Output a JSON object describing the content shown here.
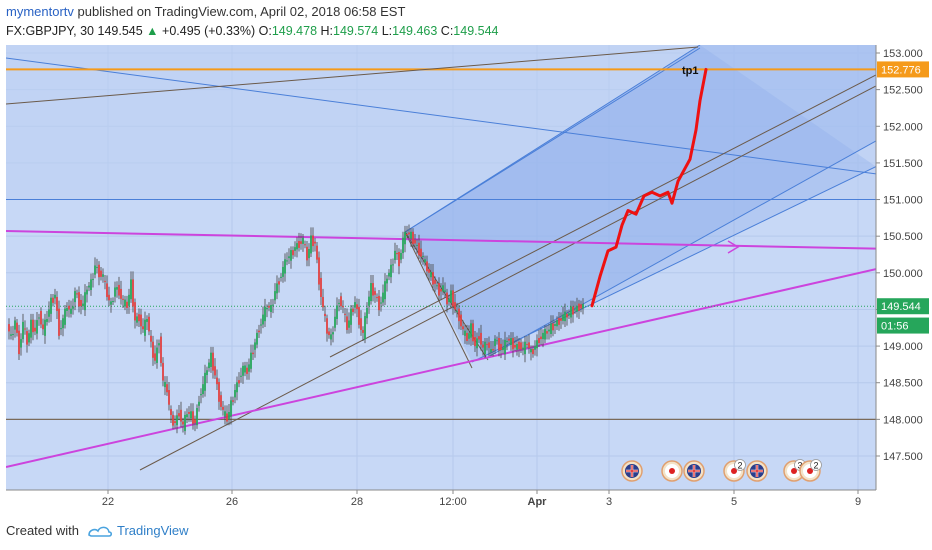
{
  "header": {
    "author": "mymentortv",
    "published": "published on TradingView.com, April 02, 2018 06:58 EST",
    "symbol": "FX:GBPJPY, 30",
    "last": "149.545",
    "change": "+0.495 (+0.33%)",
    "o_label": "O:",
    "o_value": "149.478",
    "h_label": "H:",
    "h_value": "149.574",
    "l_label": "L:",
    "l_value": "149.463",
    "c_label": "C:",
    "c_value": "149.544"
  },
  "footer": {
    "created": "Created with",
    "brand": "TradingView"
  },
  "chart_data": {
    "type": "candlestick",
    "symbol": "FX:GBPJPY",
    "interval": "30",
    "y_ticks": [
      "153.000",
      "152.500",
      "152.000",
      "151.500",
      "151.000",
      "150.500",
      "150.000",
      "149.500",
      "149.000",
      "148.500",
      "148.000",
      "147.500"
    ],
    "x_ticks": [
      "22",
      "26",
      "28",
      "12:00",
      "Apr",
      "3",
      "5",
      "9"
    ],
    "ylim": [
      147.05,
      153.1
    ],
    "price_tags": [
      {
        "label": "152.776",
        "value": 152.776,
        "color": "#f59a1a"
      },
      {
        "label": "149.544",
        "value": 149.544,
        "color": "#26a65b"
      },
      {
        "label": "01:56",
        "value": 149.28,
        "color": "#26a65b"
      }
    ],
    "annotation": "tp1",
    "horizontal_levels": [
      152.776,
      151.0,
      148.0
    ],
    "close_path": [
      [
        0,
        149.3
      ],
      [
        4,
        149.1
      ],
      [
        8,
        149.35
      ],
      [
        12,
        148.95
      ],
      [
        16,
        149.3
      ],
      [
        20,
        149.05
      ],
      [
        24,
        149.3
      ],
      [
        28,
        149.2
      ],
      [
        32,
        149.45
      ],
      [
        36,
        149.2
      ],
      [
        40,
        149.4
      ],
      [
        44,
        149.6
      ],
      [
        48,
        149.7
      ],
      [
        52,
        149.2
      ],
      [
        56,
        149.35
      ],
      [
        60,
        149.55
      ],
      [
        64,
        149.45
      ],
      [
        68,
        149.75
      ],
      [
        72,
        149.6
      ],
      [
        76,
        149.55
      ],
      [
        80,
        149.8
      ],
      [
        84,
        149.85
      ],
      [
        88,
        150.1
      ],
      [
        92,
        150.0
      ],
      [
        96,
        149.95
      ],
      [
        100,
        149.7
      ],
      [
        104,
        149.55
      ],
      [
        108,
        149.8
      ],
      [
        112,
        149.75
      ],
      [
        116,
        149.6
      ],
      [
        120,
        149.55
      ],
      [
        124,
        149.85
      ],
      [
        128,
        149.35
      ],
      [
        132,
        149.4
      ],
      [
        136,
        149.2
      ],
      [
        140,
        149.4
      ],
      [
        144,
        149.0
      ],
      [
        148,
        148.8
      ],
      [
        152,
        149.1
      ],
      [
        156,
        148.5
      ],
      [
        160,
        148.4
      ],
      [
        164,
        148.0
      ],
      [
        168,
        147.95
      ],
      [
        172,
        148.1
      ],
      [
        176,
        147.9
      ],
      [
        180,
        148.1
      ],
      [
        184,
        148.05
      ],
      [
        188,
        147.95
      ],
      [
        192,
        148.3
      ],
      [
        196,
        148.45
      ],
      [
        200,
        148.7
      ],
      [
        204,
        148.85
      ],
      [
        208,
        148.6
      ],
      [
        212,
        148.3
      ],
      [
        216,
        148.1
      ],
      [
        220,
        148.0
      ],
      [
        224,
        148.2
      ],
      [
        228,
        148.4
      ],
      [
        232,
        148.55
      ],
      [
        236,
        148.7
      ],
      [
        240,
        148.65
      ],
      [
        244,
        148.85
      ],
      [
        248,
        149.05
      ],
      [
        252,
        149.25
      ],
      [
        256,
        149.4
      ],
      [
        260,
        149.55
      ],
      [
        264,
        149.5
      ],
      [
        268,
        149.75
      ],
      [
        272,
        149.9
      ],
      [
        276,
        150.05
      ],
      [
        280,
        150.2
      ],
      [
        284,
        150.25
      ],
      [
        288,
        150.35
      ],
      [
        292,
        150.4
      ],
      [
        296,
        150.45
      ],
      [
        300,
        150.2
      ],
      [
        304,
        150.45
      ],
      [
        308,
        150.4
      ],
      [
        312,
        149.9
      ],
      [
        316,
        149.5
      ],
      [
        320,
        149.2
      ],
      [
        324,
        149.1
      ],
      [
        328,
        149.4
      ],
      [
        332,
        149.65
      ],
      [
        336,
        149.5
      ],
      [
        340,
        149.25
      ],
      [
        344,
        149.45
      ],
      [
        348,
        149.6
      ],
      [
        352,
        149.35
      ],
      [
        356,
        149.15
      ],
      [
        360,
        149.55
      ],
      [
        364,
        149.8
      ],
      [
        368,
        149.7
      ],
      [
        372,
        149.55
      ],
      [
        376,
        149.7
      ],
      [
        380,
        149.95
      ],
      [
        384,
        150.05
      ],
      [
        388,
        150.3
      ],
      [
        392,
        150.15
      ],
      [
        396,
        150.45
      ],
      [
        400,
        150.55
      ],
      [
        404,
        150.5
      ],
      [
        408,
        150.4
      ],
      [
        412,
        150.3
      ],
      [
        416,
        150.2
      ],
      [
        420,
        150.05
      ],
      [
        424,
        149.95
      ],
      [
        428,
        149.85
      ],
      [
        432,
        149.75
      ],
      [
        436,
        149.8
      ],
      [
        440,
        149.6
      ],
      [
        444,
        149.7
      ],
      [
        448,
        149.5
      ],
      [
        452,
        149.4
      ],
      [
        456,
        149.2
      ],
      [
        460,
        149.1
      ],
      [
        464,
        149.25
      ],
      [
        468,
        149.0
      ],
      [
        472,
        149.15
      ],
      [
        476,
        148.95
      ],
      [
        480,
        149.05
      ],
      [
        484,
        148.9
      ],
      [
        488,
        149.1
      ],
      [
        492,
        149.0
      ],
      [
        496,
        148.95
      ],
      [
        500,
        149.1
      ],
      [
        504,
        149.05
      ],
      [
        508,
        148.98
      ],
      [
        512,
        149.02
      ],
      [
        516,
        148.95
      ],
      [
        520,
        149.05
      ],
      [
        524,
        148.9
      ],
      [
        528,
        149.0
      ],
      [
        532,
        149.1
      ],
      [
        536,
        149.15
      ],
      [
        540,
        149.2
      ],
      [
        544,
        149.25
      ],
      [
        548,
        149.3
      ],
      [
        552,
        149.35
      ],
      [
        556,
        149.4
      ],
      [
        560,
        149.42
      ],
      [
        564,
        149.48
      ],
      [
        568,
        149.5
      ],
      [
        572,
        149.54
      ],
      [
        576,
        149.545
      ]
    ],
    "forecast_path": [
      [
        592,
        149.55
      ],
      [
        600,
        149.95
      ],
      [
        608,
        150.3
      ],
      [
        616,
        150.35
      ],
      [
        622,
        150.65
      ],
      [
        628,
        150.85
      ],
      [
        636,
        150.8
      ],
      [
        644,
        151.05
      ],
      [
        652,
        151.1
      ],
      [
        660,
        151.05
      ],
      [
        668,
        151.1
      ],
      [
        672,
        150.95
      ],
      [
        678,
        151.25
      ],
      [
        686,
        151.45
      ],
      [
        690,
        151.55
      ],
      [
        696,
        151.95
      ],
      [
        700,
        152.35
      ],
      [
        706,
        152.776
      ]
    ],
    "colors": {
      "accent": "#2962c4",
      "up": "#26a65b",
      "down": "#e04040",
      "forecast": "#ee1111",
      "level": "#f59a1a",
      "trend": "#cc44dd"
    }
  }
}
